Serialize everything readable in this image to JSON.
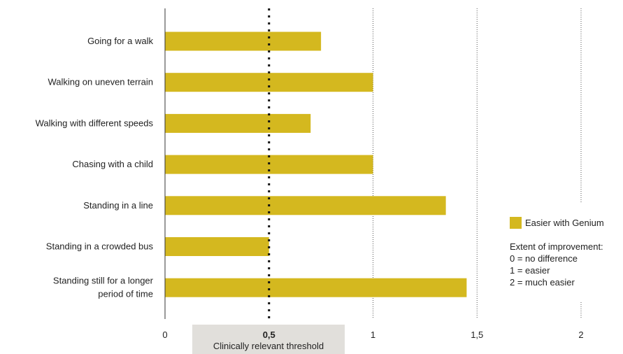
{
  "chart_data": {
    "type": "bar",
    "orientation": "horizontal",
    "categories": [
      "Going for a walk",
      "Walking on uneven terrain",
      "Walking with different speeds",
      "Chasing with a child",
      "Standing in a line",
      "Standing in a crowded bus",
      "Standing still for a longer period of time"
    ],
    "category_lines": [
      [
        "Going for a walk"
      ],
      [
        "Walking on uneven terrain"
      ],
      [
        "Walking with different speeds"
      ],
      [
        "Chasing with a child"
      ],
      [
        "Standing in a line"
      ],
      [
        "Standing in a crowded bus"
      ],
      [
        "Standing still for a longer",
        "period of time"
      ]
    ],
    "series": [
      {
        "name": "Easier with Genium",
        "values": [
          0.75,
          1.0,
          0.7,
          1.0,
          1.35,
          0.5,
          1.45
        ]
      }
    ],
    "xlim": [
      0,
      2
    ],
    "xticks": [
      0,
      0.5,
      1,
      1.5,
      2
    ],
    "xtick_labels": [
      "0",
      "0,5",
      "1",
      "1,5",
      "2"
    ],
    "threshold": {
      "value": 0.5,
      "label": "Clinically relevant threshold"
    },
    "legend": {
      "position": "right",
      "series_label": "Easier with Genium",
      "note_title": "Extent of improvement:",
      "note_lines": [
        "0 = no difference",
        "1 = easier",
        "2 = much easier"
      ]
    },
    "bar_color": "#d4b81f",
    "grid": "dotted vertical lines at 1, 1.5, 2",
    "threshold_box_color": "#e1dfdb"
  }
}
